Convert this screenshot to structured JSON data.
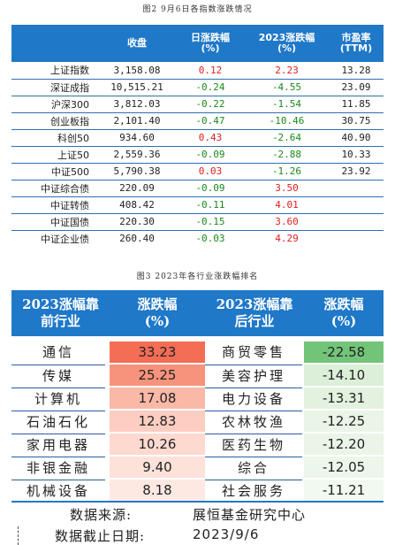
{
  "figure1": {
    "caption": "图2  9月6日各指数涨跌情况",
    "headers": {
      "name": "",
      "close": "收盘",
      "day_change": "日涨跌幅\n(%)",
      "ytd_change": "2023涨跌幅\n(%)",
      "pe": "市盈率\n(TTM)"
    },
    "rows": [
      {
        "name": "上证指数",
        "close": "3,158.08",
        "day_change": "0.12",
        "ytd_change": "2.23",
        "pe": "13.28"
      },
      {
        "name": "深证成指",
        "close": "10,515.21",
        "day_change": "-0.24",
        "ytd_change": "-4.55",
        "pe": "23.09"
      },
      {
        "name": "沪深300",
        "close": "3,812.03",
        "day_change": "-0.22",
        "ytd_change": "-1.54",
        "pe": "11.85"
      },
      {
        "name": "创业板指",
        "close": "2,101.40",
        "day_change": "-0.47",
        "ytd_change": "-10.46",
        "pe": "30.75"
      },
      {
        "name": "科创50",
        "close": "934.60",
        "day_change": "0.43",
        "ytd_change": "-2.64",
        "pe": "40.90"
      },
      {
        "name": "上证50",
        "close": "2,559.36",
        "day_change": "-0.09",
        "ytd_change": "-2.88",
        "pe": "10.33"
      },
      {
        "name": "中证500",
        "close": "5,790.38",
        "day_change": "0.03",
        "ytd_change": "-1.26",
        "pe": "23.92"
      },
      {
        "name": "中证综合债",
        "close": "220.09",
        "day_change": "-0.09",
        "ytd_change": "3.50",
        "pe": ""
      },
      {
        "name": "中证转债",
        "close": "408.42",
        "day_change": "-0.11",
        "ytd_change": "4.01",
        "pe": ""
      },
      {
        "name": "中证国债",
        "close": "220.30",
        "day_change": "-0.15",
        "ytd_change": "3.60",
        "pe": ""
      },
      {
        "name": "中证企业债",
        "close": "260.40",
        "day_change": "-0.03",
        "ytd_change": "4.29",
        "pe": ""
      }
    ]
  },
  "figure2": {
    "caption": "图3  2023年各行业涨跌幅排名",
    "headers": {
      "top_name": "2023涨幅靠\n前行业",
      "top_value": "涨跌幅\n(%)",
      "bottom_name": "2023涨幅靠\n后行业",
      "bottom_value": "涨跌幅\n(%)"
    },
    "rows": [
      {
        "top_name": "通信",
        "top_value": "33.23",
        "top_color": "#f46d55",
        "bottom_name": "商贸零售",
        "bottom_value": "-22.58",
        "bottom_color": "#72c479"
      },
      {
        "top_name": "传媒",
        "top_value": "25.25",
        "top_color": "#f7937c",
        "bottom_name": "美容护理",
        "bottom_value": "-14.10",
        "bottom_color": "#dcefd8"
      },
      {
        "top_name": "计算机",
        "top_value": "17.08",
        "top_color": "#fab8a7",
        "bottom_name": "电力设备",
        "bottom_value": "-13.31",
        "bottom_color": "#e3f2df"
      },
      {
        "top_name": "石油石化",
        "top_value": "12.83",
        "top_color": "#fccdc0",
        "bottom_name": "农林牧渔",
        "bottom_value": "-12.25",
        "bottom_color": "#eaf5e7"
      },
      {
        "top_name": "家用电器",
        "top_value": "10.26",
        "top_color": "#fdd9cf",
        "bottom_name": "医药生物",
        "bottom_value": "-12.20",
        "bottom_color": "#eaf5e7"
      },
      {
        "top_name": "非银金融",
        "top_value": "9.40",
        "top_color": "#fde2d9",
        "bottom_name": "综合",
        "bottom_value": "-12.05",
        "bottom_color": "#ecf6e9"
      },
      {
        "top_name": "机械设备",
        "top_value": "8.18",
        "top_color": "#fee9e2",
        "bottom_name": "社会服务",
        "bottom_value": "-11.21",
        "bottom_color": "#f2f9f0"
      }
    ],
    "source_label": "数据来源:",
    "source_value": "展恒基金研究中心",
    "date_label": "数据截止日期:",
    "date_value": "2023/9/6"
  },
  "colors": {
    "header_blue": "#1f78c8",
    "positive_red": "#e02020",
    "negative_green": "#1a8a1a"
  }
}
